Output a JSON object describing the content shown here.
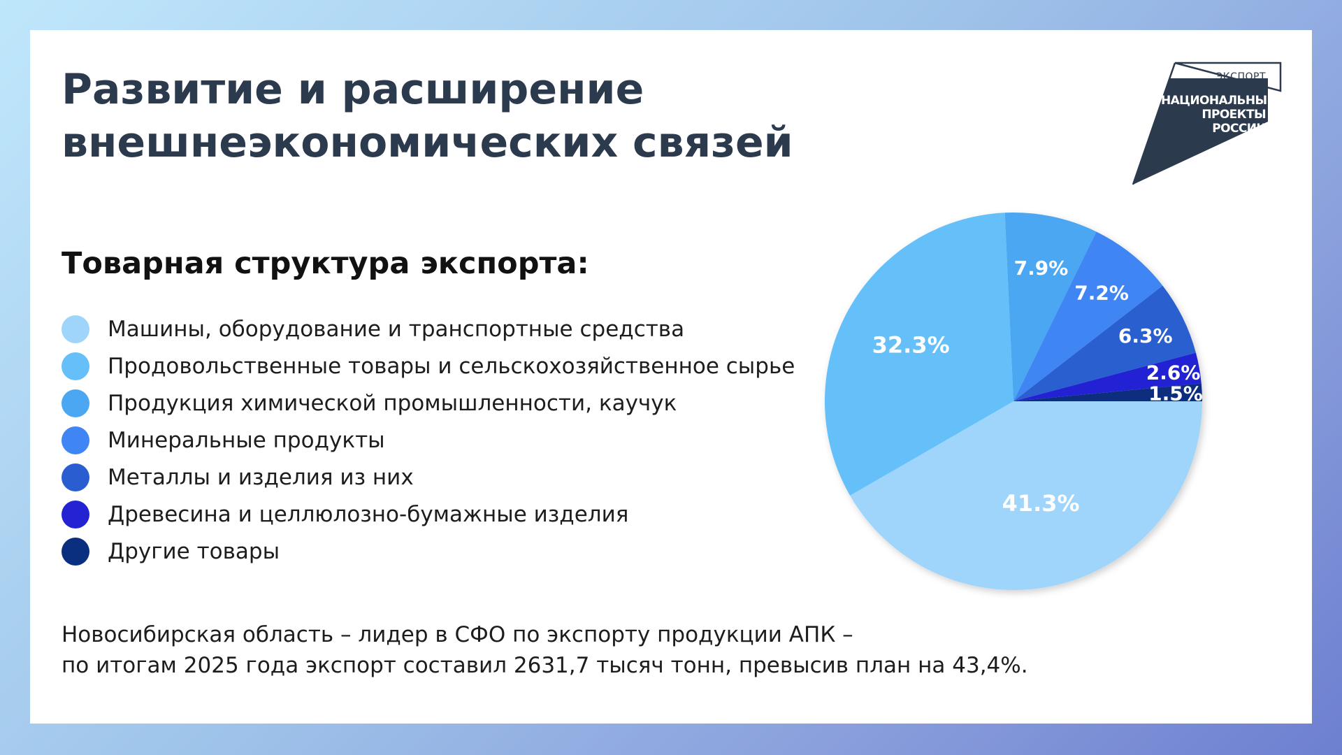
{
  "title": {
    "line1": "Развитие и расширение",
    "line2": "внешнеэкономических связей"
  },
  "logo": {
    "top": "ЭКСПОРТ",
    "main": "НАЦИОНАЛЬНЫЕ ПРОЕКТЫ РОССИИ",
    "color": "#2c3a4e"
  },
  "subtitle": "Товарная структура экспорта:",
  "legend": [
    {
      "label": "Машины, оборудование и транспортные средства",
      "color": "#9fd5fb"
    },
    {
      "label": "Продовольственные товары и сельскохозяйственное сырье",
      "color": "#65c0f9"
    },
    {
      "label": "Продукция химической промышленности, каучук",
      "color": "#4ba7f2"
    },
    {
      "label": "Минеральные продукты",
      "color": "#3f85f4"
    },
    {
      "label": "Металлы и изделия из них",
      "color": "#2a5ed0"
    },
    {
      "label": "Древесина и целлюлозно-бумажные изделия",
      "color": "#2323d4"
    },
    {
      "label": "Другие товары",
      "color": "#0b2f7f"
    }
  ],
  "chart_data": {
    "type": "pie",
    "labels": [
      "Машины, оборудование и транспортные средства",
      "Продовольственные товары и сельскохозяйственное сырье",
      "Продукция химической промышленности, каучук",
      "Минеральные продукты",
      "Металлы и изделия из них",
      "Древесина и целлюлозно-бумажные изделия",
      "Другие товары"
    ],
    "values": [
      41.3,
      32.3,
      7.9,
      7.2,
      6.3,
      2.6,
      1.5
    ],
    "value_labels": [
      "41.3%",
      "32.3%",
      "7.9%",
      "7.2%",
      "6.3%",
      "2.6%",
      "1.5%"
    ],
    "colors": [
      "#9fd5fb",
      "#65c0f9",
      "#4ba7f2",
      "#3f85f4",
      "#2a5ed0",
      "#2323d4",
      "#0b2f7f"
    ],
    "start": "3 o'clock",
    "direction": "clockwise",
    "legend_position": "left"
  },
  "footer": {
    "line1": "Новосибирская область – лидер в СФО по экспорту продукции АПК –",
    "line2": "по итогам 2025 года экспорт составил 2631,7 тысяч тонн, превысив план на 43,4%."
  }
}
